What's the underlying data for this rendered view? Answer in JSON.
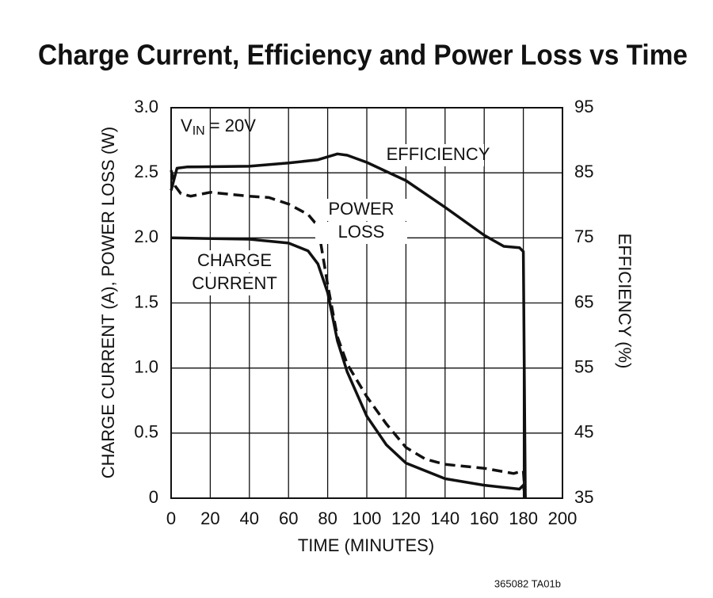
{
  "chart_data": {
    "type": "line",
    "title": "Charge Current, Efficiency and Power Loss vs Time",
    "x_label": "TIME (MINUTES)",
    "y_label": "CHARGE CURRENT (A), POWER LOSS (W)",
    "y2_label": "EFFICIENCY (%)",
    "xlim": [
      0,
      200
    ],
    "xticks": [
      0,
      20,
      40,
      60,
      80,
      100,
      120,
      140,
      160,
      180,
      200
    ],
    "ylim": [
      0,
      3
    ],
    "yticks": [
      0,
      0.5,
      {
        "value": 1,
        "label": "1.0"
      },
      1.5,
      {
        "value": 2,
        "label": "2.0"
      },
      2.5,
      {
        "value": 3,
        "label": "3.0"
      }
    ],
    "y2lim": [
      35,
      95
    ],
    "y2ticks": [
      35,
      45,
      55,
      65,
      75,
      85,
      95
    ],
    "grid": true,
    "series": [
      {
        "name": "EFFICIENCY",
        "color": "#111111",
        "line_style": "solid",
        "axis": "y2",
        "x": [
          0,
          3,
          8,
          40,
          60,
          75,
          85,
          90,
          100,
          120,
          140,
          160,
          170,
          178,
          180,
          181
        ],
        "values": [
          82.3,
          85.7,
          85.9,
          86.0,
          86.5,
          87.0,
          87.9,
          87.7,
          86.6,
          83.8,
          79.7,
          75.4,
          73.7,
          73.5,
          72.9,
          35
        ]
      },
      {
        "name": "CHARGE CURRENT",
        "color": "#111111",
        "line_style": "solid",
        "x": [
          0,
          40,
          60,
          70,
          75,
          80,
          85,
          90,
          100,
          110,
          120,
          140,
          160,
          178,
          180,
          181
        ],
        "values": [
          2.0,
          1.99,
          1.96,
          1.9,
          1.8,
          1.58,
          1.21,
          0.97,
          0.63,
          0.41,
          0.27,
          0.15,
          0.1,
          0.07,
          0.1,
          0
        ]
      },
      {
        "name": "POWER LOSS",
        "color": "#111111",
        "line_style": "dashed",
        "x": [
          0,
          2,
          5,
          10,
          20,
          40,
          50,
          60,
          70,
          75,
          80,
          85,
          90,
          100,
          110,
          120,
          130,
          140,
          160,
          175,
          180,
          181
        ],
        "values": [
          2.52,
          2.4,
          2.34,
          2.32,
          2.35,
          2.32,
          2.31,
          2.26,
          2.18,
          2.09,
          1.64,
          1.24,
          1.03,
          0.78,
          0.57,
          0.39,
          0.3,
          0.26,
          0.23,
          0.19,
          0.21,
          0
        ]
      }
    ],
    "condition": {
      "base": "V",
      "subscript": "IN",
      "text": " = 20V"
    },
    "annotations": [
      {
        "lines": [
          "EFFICIENCY"
        ]
      },
      {
        "lines": [
          "POWER",
          "LOSS"
        ]
      },
      {
        "lines": [
          "CHARGE",
          "CURRENT"
        ]
      }
    ],
    "footnote": "365082 TA01b"
  }
}
